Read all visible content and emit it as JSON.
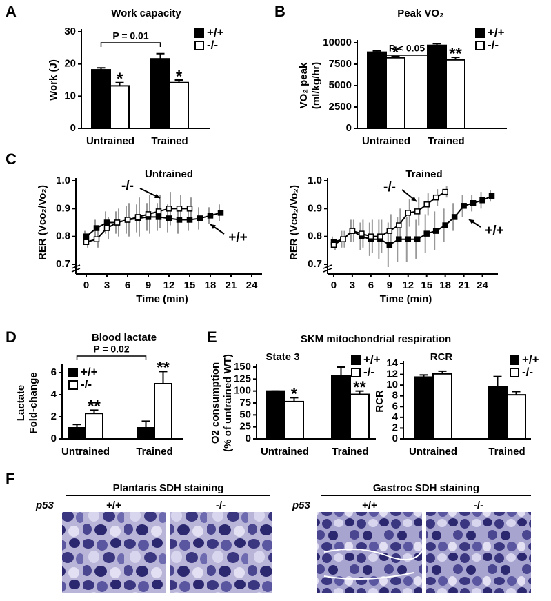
{
  "panel_labels": [
    "A",
    "B",
    "C",
    "D",
    "E",
    "F"
  ],
  "chart_data": [
    {
      "type": "bar",
      "title": "Work capacity",
      "ylabel": [
        "Work (J)"
      ],
      "categories": [
        "Untrained",
        "Trained"
      ],
      "series": [
        {
          "name": "+/+",
          "color": "#000000",
          "values": [
            18.2,
            21.6
          ],
          "errors": [
            0.6,
            1.6
          ]
        },
        {
          "name": "-/-",
          "color": "#ffffff",
          "values": [
            13.2,
            14.2
          ],
          "errors": [
            1.0,
            0.8
          ],
          "stars": [
            "*",
            "*"
          ]
        }
      ],
      "ylim": [
        0,
        30
      ],
      "yticks": [
        0,
        10,
        20,
        30
      ],
      "bracket": "P = 0.01"
    },
    {
      "type": "bar",
      "title": "Peak VO₂",
      "ylabel": [
        "VO₂ peak",
        "(ml/kg/hr)"
      ],
      "categories": [
        "Untrained",
        "Trained"
      ],
      "series": [
        {
          "name": "+/+",
          "color": "#000000",
          "values": [
            8900,
            9700
          ],
          "errors": [
            150,
            200
          ]
        },
        {
          "name": "-/-",
          "color": "#ffffff",
          "values": [
            8250,
            8000
          ],
          "errors": [
            150,
            300
          ],
          "stars": [
            "*",
            "**"
          ]
        }
      ],
      "ylim": [
        0,
        10000
      ],
      "yticks": [
        0,
        2500,
        5000,
        7500,
        10000
      ],
      "bracket": "P < 0.05"
    },
    {
      "type": "line",
      "title": "Untrained",
      "xlabel": "Time (min)",
      "ylabel": [
        "RER (Vco₂/Vo₂)"
      ],
      "series": [
        {
          "name": "+/+",
          "color": "#000000",
          "x": [
            0,
            1.5,
            3,
            4.5,
            6,
            7.5,
            9,
            10.5,
            12,
            13.5,
            15,
            16.5,
            18,
            19.5
          ],
          "values": [
            0.8,
            0.83,
            0.85,
            0.85,
            0.86,
            0.865,
            0.87,
            0.87,
            0.865,
            0.86,
            0.86,
            0.865,
            0.875,
            0.885
          ],
          "errors": [
            0.02,
            0.03,
            0.04,
            0.04,
            0.05,
            0.05,
            0.05,
            0.05,
            0.05,
            0.05,
            0.04,
            0.04,
            0.03,
            0.03
          ]
        },
        {
          "name": "-/-",
          "color": "#ffffff",
          "x": [
            0,
            1.5,
            3,
            4.5,
            6,
            7.5,
            9,
            10.5,
            12,
            13.5,
            15
          ],
          "values": [
            0.78,
            0.79,
            0.83,
            0.85,
            0.86,
            0.87,
            0.88,
            0.89,
            0.9,
            0.9,
            0.9
          ],
          "errors": [
            0.02,
            0.03,
            0.04,
            0.05,
            0.06,
            0.07,
            0.07,
            0.06,
            0.06,
            0.05,
            0.04
          ]
        }
      ],
      "xlim": [
        -1.5,
        25.5
      ],
      "xticks": [
        0,
        3,
        6,
        9,
        12,
        15,
        18,
        21,
        24
      ],
      "ylim": [
        0.7,
        1.0
      ],
      "yticks": [
        0.7,
        0.8,
        0.9,
        {
          "value": 1.0,
          "label": "1.0"
        }
      ]
    },
    {
      "type": "line",
      "title": "Trained",
      "xlabel": "Time (min)",
      "ylabel": [
        "RER (Vco₂/Vo₂)"
      ],
      "series": [
        {
          "name": "+/+",
          "color": "#000000",
          "x": [
            0,
            1.5,
            3,
            4.5,
            6,
            7.5,
            9,
            10.5,
            12,
            13.5,
            15,
            16.5,
            18,
            19.5,
            21,
            22.5,
            24,
            25.5
          ],
          "values": [
            0.78,
            0.79,
            0.82,
            0.8,
            0.79,
            0.79,
            0.77,
            0.79,
            0.79,
            0.79,
            0.81,
            0.82,
            0.84,
            0.87,
            0.91,
            0.92,
            0.93,
            0.945
          ],
          "errors": [
            0.02,
            0.03,
            0.04,
            0.05,
            0.06,
            0.07,
            0.08,
            0.08,
            0.08,
            0.07,
            0.07,
            0.07,
            0.06,
            0.05,
            0.04,
            0.03,
            0.03,
            0.02
          ]
        },
        {
          "name": "-/-",
          "color": "#ffffff",
          "x": [
            0,
            1.5,
            3,
            4.5,
            6,
            7.5,
            9,
            10.5,
            12,
            13.5,
            15,
            16.5,
            18
          ],
          "values": [
            0.77,
            0.79,
            0.82,
            0.81,
            0.8,
            0.8,
            0.82,
            0.84,
            0.885,
            0.89,
            0.915,
            0.94,
            0.96
          ],
          "errors": [
            0.02,
            0.03,
            0.04,
            0.05,
            0.06,
            0.06,
            0.06,
            0.06,
            0.05,
            0.05,
            0.04,
            0.03,
            0.02
          ]
        }
      ],
      "xlim": [
        -1,
        26.5
      ],
      "xticks": [
        0,
        3,
        6,
        9,
        12,
        15,
        18,
        21,
        24
      ],
      "ylim": [
        0.7,
        1.0
      ],
      "yticks": [
        0.7,
        0.8,
        0.9,
        {
          "value": 1.0,
          "label": "1.0"
        }
      ]
    },
    {
      "type": "bar",
      "title": "Blood lactate",
      "ylabel": [
        "Lactate",
        "Fold-change"
      ],
      "categories": [
        "Untrained",
        "Trained"
      ],
      "series": [
        {
          "name": "+/+",
          "color": "#000000",
          "values": [
            1.0,
            1.0
          ],
          "errors": [
            0.3,
            0.6
          ]
        },
        {
          "name": "-/-",
          "color": "#ffffff",
          "values": [
            2.3,
            5.0
          ],
          "errors": [
            0.3,
            1.1
          ],
          "stars": [
            "**",
            "**"
          ]
        }
      ],
      "ylim": [
        0,
        6.5
      ],
      "yticks": [
        0,
        2,
        4,
        6
      ],
      "bracket": "P = 0.02"
    },
    {
      "type": "bar",
      "suptitle": "SKM mitochondrial respiration",
      "title": "State 3",
      "ylabel": [
        "O2 consumption",
        "(% of untrained WT)"
      ],
      "categories": [
        "Untrained",
        "Trained"
      ],
      "series": [
        {
          "name": "+/+",
          "color": "#000000",
          "values": [
            100,
            132
          ],
          "errors": [
            0,
            18
          ]
        },
        {
          "name": "-/-",
          "color": "#ffffff",
          "values": [
            78,
            93
          ],
          "errors": [
            8,
            7
          ],
          "stars": [
            "*",
            "**"
          ]
        }
      ],
      "ylim": [
        0,
        150
      ],
      "yticks": [
        0,
        25,
        50,
        75,
        100,
        125,
        150
      ]
    },
    {
      "type": "bar",
      "title": "RCR",
      "ylabel": [
        "RCR"
      ],
      "categories": [
        "Untrained",
        "Trained"
      ],
      "series": [
        {
          "name": "+/+",
          "color": "#000000",
          "values": [
            11.5,
            9.7
          ],
          "errors": [
            0.4,
            1.9
          ]
        },
        {
          "name": "-/-",
          "color": "#ffffff",
          "values": [
            12.1,
            8.2
          ],
          "errors": [
            0.5,
            0.6
          ]
        }
      ],
      "ylim": [
        0,
        14
      ],
      "yticks": [
        0,
        2,
        4,
        6,
        8,
        10,
        12,
        14
      ]
    }
  ],
  "staining": {
    "gene": "p53",
    "panels": [
      {
        "title": "Plantaris SDH staining",
        "genotypes": [
          "+/+",
          "-/-"
        ]
      },
      {
        "title": "Gastroc SDH staining",
        "genotypes": [
          "+/+",
          "-/-"
        ]
      }
    ]
  }
}
